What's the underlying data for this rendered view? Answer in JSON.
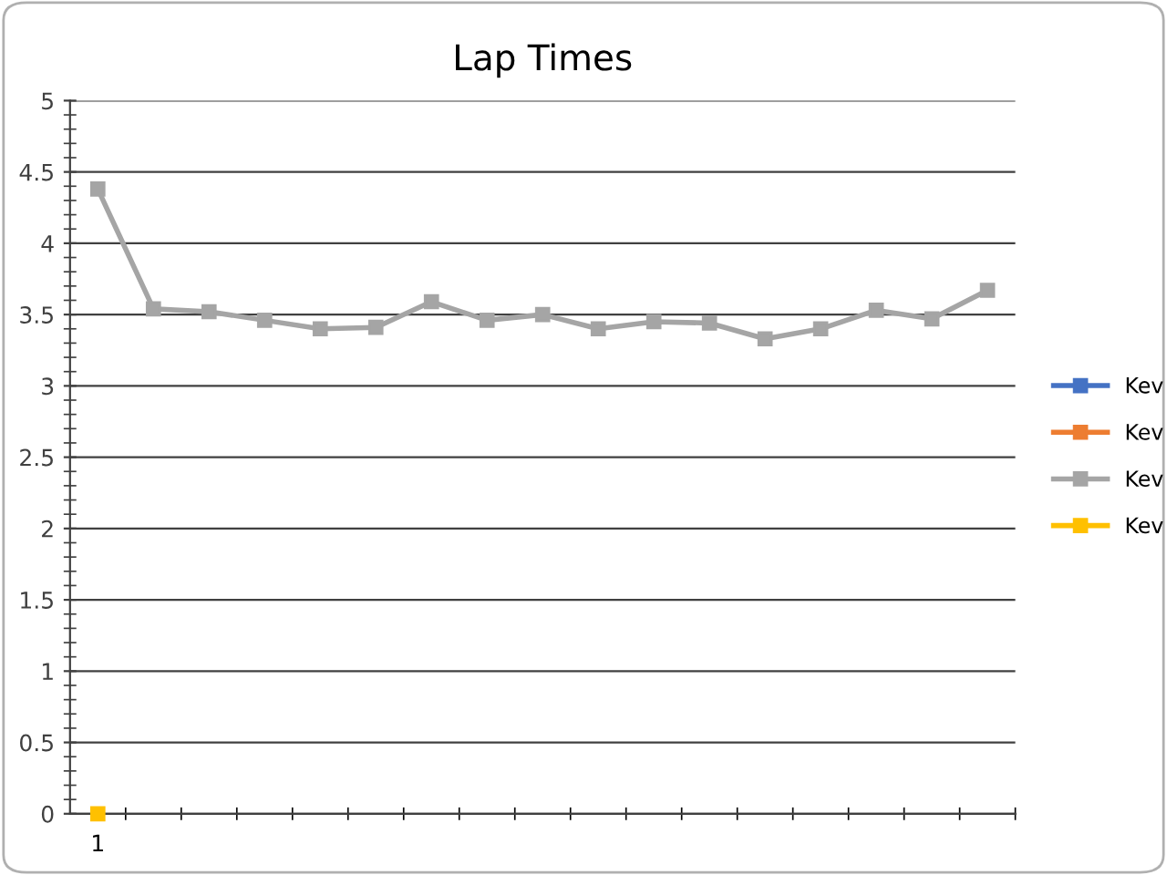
{
  "chart_data": {
    "type": "line",
    "title": "Lap Times",
    "categories": [
      "1",
      null,
      null,
      null,
      null,
      null,
      null,
      null,
      null,
      null,
      null,
      null,
      null,
      null,
      null,
      null,
      null
    ],
    "series": [
      {
        "name": "Kev",
        "color": "#4472c4",
        "values": [
          null,
          null,
          null,
          null,
          null,
          null,
          null,
          null,
          null,
          null,
          null,
          null,
          null,
          null,
          null,
          null,
          null
        ]
      },
      {
        "name": "Kev",
        "color": "#ed7d31",
        "values": [
          null,
          null,
          null,
          null,
          null,
          null,
          null,
          null,
          null,
          null,
          null,
          null,
          null,
          null,
          null,
          null,
          null
        ]
      },
      {
        "name": "Kev",
        "color": "#a5a5a5",
        "values": [
          4.38,
          3.54,
          3.52,
          3.46,
          3.4,
          3.41,
          3.59,
          3.46,
          3.5,
          3.4,
          3.45,
          3.44,
          3.33,
          3.4,
          3.53,
          3.47,
          3.67
        ]
      },
      {
        "name": "Kev",
        "color": "#ffc000",
        "values": [
          0,
          null,
          null,
          null,
          null,
          null,
          null,
          null,
          null,
          null,
          null,
          null,
          null,
          null,
          null,
          null,
          null
        ]
      }
    ],
    "ylim": [
      0,
      5
    ],
    "yticks": [
      0,
      0.5,
      1,
      1.5,
      2,
      2.5,
      3,
      3.5,
      4,
      4.5,
      5
    ],
    "grid": "y",
    "legend": "right",
    "marker": "square",
    "line_style": "solid"
  }
}
